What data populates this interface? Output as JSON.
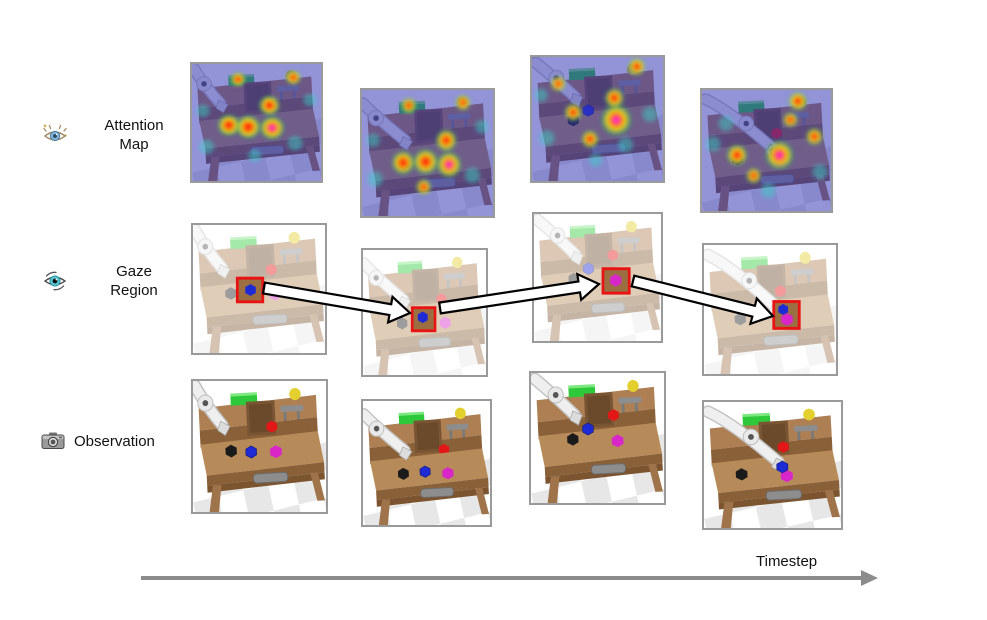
{
  "figure": {
    "rows": [
      {
        "id": "attention-map",
        "line1": "Attention",
        "line2": "Map",
        "icon": "sparkle-eye-icon"
      },
      {
        "id": "gaze-region",
        "line1": "Gaze",
        "line2": "Region",
        "icon": "eye-icon"
      },
      {
        "id": "observation",
        "line1": "Observation",
        "line2": "",
        "icon": "camera-icon"
      }
    ],
    "num_timesteps": 4,
    "x_axis": {
      "label": "Timestep"
    },
    "palette": {
      "panel_border": "#9a9a9a",
      "gaze_box_red": "#e81313",
      "arrow_fill": "#ffffff",
      "arrow_outline": "#000000",
      "timestep_arrow_gray": "#8c8c8c",
      "table_brown": "#ad7f52",
      "table_brown_light": "#b78b59",
      "table_brown_dark": "#8a6038",
      "robot_white": "#efefef",
      "floor_gray": "#e7e7e7",
      "object_colors": {
        "green_box": "#2ec93a",
        "yellow_ball": "#e3cf2e",
        "red_hex": "#e31717",
        "black_hex": "#1a1a1a",
        "blue_hex": "#1e2ad4",
        "magenta_hex": "#d926c9",
        "gray_prop": "#8d8d8d"
      },
      "heatmap": {
        "overlay_blue": "#4343cf",
        "cool_teal": "#38d8c8",
        "green": "#20c050",
        "yellow": "#ffe010",
        "orange": "#ff7800",
        "red": "#ff2410",
        "pink_core": "#ff35c8"
      }
    }
  }
}
